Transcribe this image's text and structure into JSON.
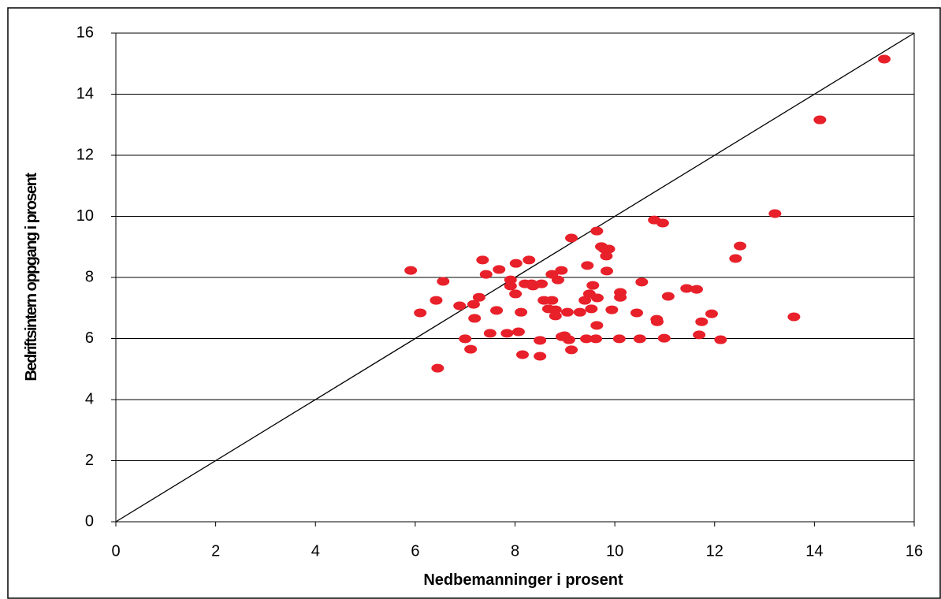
{
  "chart_data": {
    "type": "scatter",
    "xlabel": "Nedbemanninger i prosent",
    "ylabel": "Bedriftsintern oppgang i prosent",
    "xlim": [
      0,
      16
    ],
    "ylim": [
      0,
      16
    ],
    "xticks": [
      0,
      2,
      4,
      6,
      8,
      10,
      12,
      14,
      16
    ],
    "yticks": [
      0,
      2,
      4,
      6,
      8,
      10,
      12,
      14,
      16
    ],
    "grid": true,
    "color": "#e8202a",
    "reference_line": {
      "x": [
        0,
        16
      ],
      "y": [
        0,
        16
      ],
      "color": "#000000"
    },
    "x": [
      5.91,
      6.1,
      6.42,
      6.45,
      6.56,
      6.89,
      7.0,
      7.11,
      7.17,
      7.19,
      7.28,
      7.35,
      7.42,
      7.5,
      7.63,
      7.68,
      7.84,
      7.91,
      7.91,
      8.01,
      8.02,
      8.07,
      8.12,
      8.15,
      8.2,
      8.28,
      8.33,
      8.36,
      8.5,
      8.5,
      8.53,
      8.58,
      8.67,
      8.74,
      8.74,
      8.81,
      8.81,
      8.86,
      8.93,
      8.94,
      8.99,
      9.05,
      9.08,
      9.13,
      9.13,
      9.3,
      9.4,
      9.43,
      9.45,
      9.49,
      9.53,
      9.56,
      9.62,
      9.64,
      9.65,
      9.64,
      9.73,
      9.79,
      9.88,
      9.83,
      9.84,
      9.94,
      10.09,
      10.11,
      10.11,
      10.54,
      10.44,
      10.5,
      10.79,
      10.84,
      10.85,
      10.96,
      10.99,
      11.07,
      11.44,
      11.64,
      11.69,
      11.74,
      11.94,
      12.12,
      12.42,
      12.51,
      13.21,
      13.59,
      14.11,
      15.4
    ],
    "y": [
      8.23,
      6.84,
      7.25,
      5.03,
      7.87,
      7.07,
      5.99,
      5.65,
      7.12,
      6.66,
      7.35,
      8.57,
      8.1,
      6.17,
      6.92,
      8.26,
      6.17,
      7.92,
      7.72,
      7.46,
      8.46,
      6.22,
      6.86,
      5.47,
      7.79,
      8.57,
      7.79,
      7.72,
      5.94,
      5.42,
      7.79,
      7.25,
      6.97,
      7.25,
      8.1,
      6.74,
      6.94,
      7.92,
      8.23,
      6.06,
      6.09,
      6.86,
      5.96,
      5.63,
      9.29,
      6.86,
      7.25,
      5.99,
      8.39,
      7.46,
      6.97,
      7.74,
      5.99,
      6.43,
      7.33,
      9.52,
      9.01,
      8.93,
      8.93,
      8.7,
      8.21,
      6.94,
      5.99,
      7.51,
      7.35,
      7.85,
      6.84,
      5.99,
      9.88,
      6.63,
      6.55,
      9.78,
      6.01,
      7.38,
      7.64,
      7.61,
      6.12,
      6.55,
      6.81,
      5.96,
      8.62,
      9.03,
      10.09,
      6.71,
      13.16,
      15.15
    ]
  }
}
